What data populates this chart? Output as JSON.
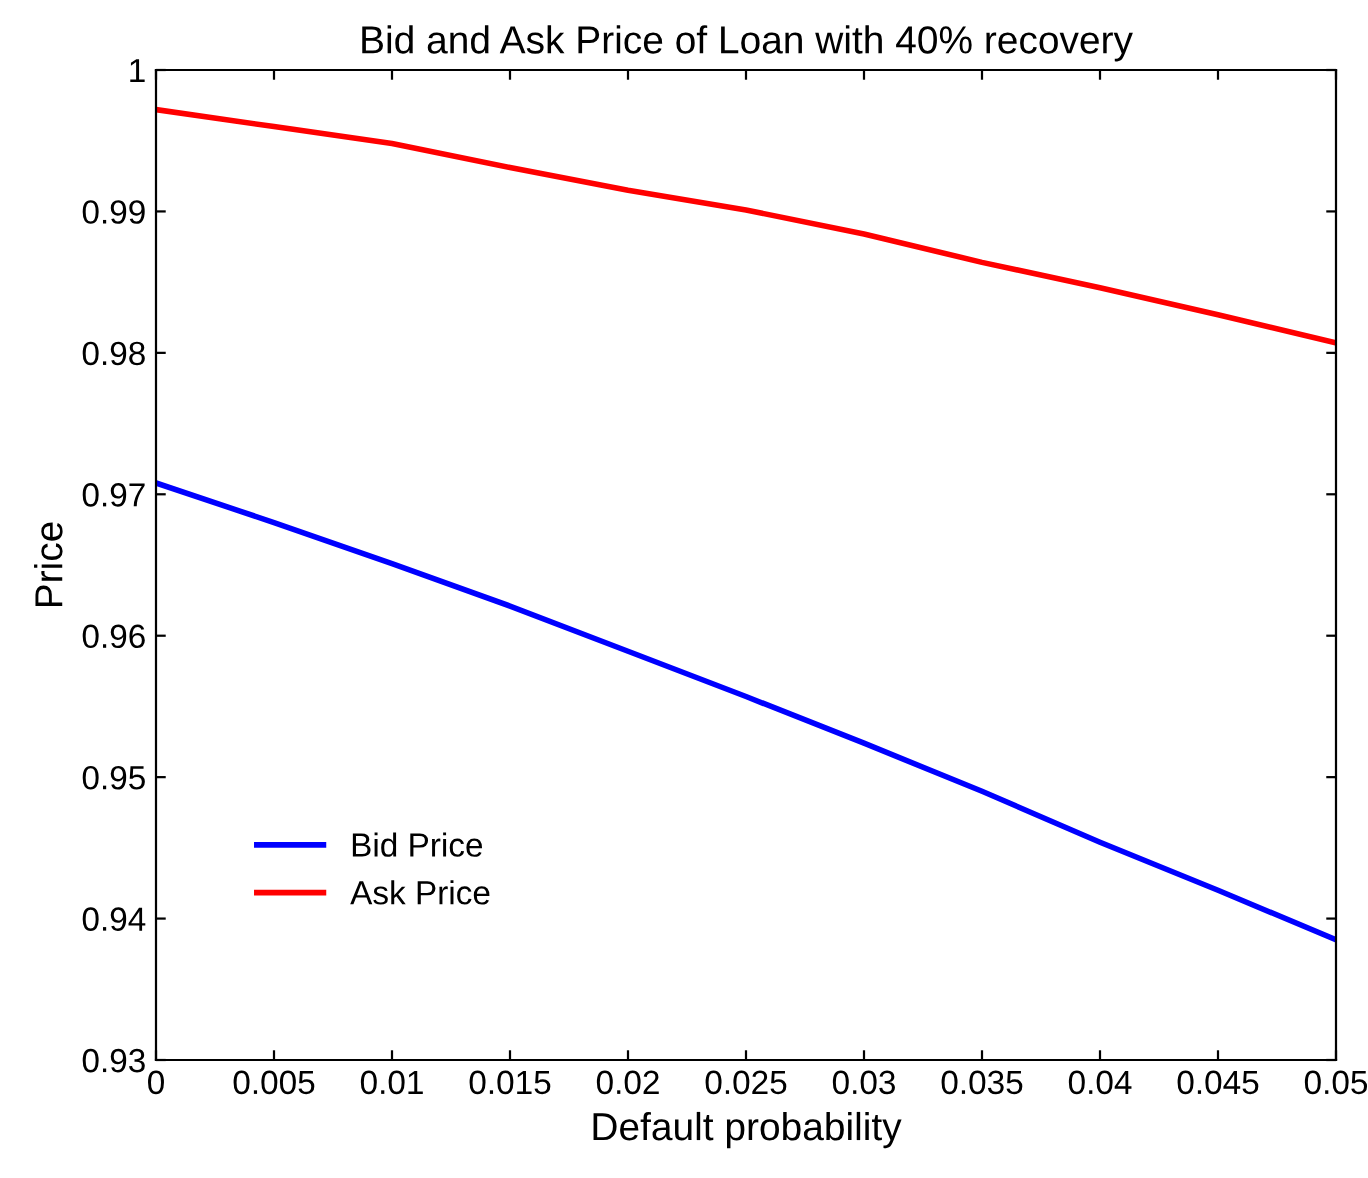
{
  "chart_data": {
    "type": "line",
    "title": "Bid and Ask Price of Loan with 40% recovery",
    "xlabel": "Default probability",
    "ylabel": "Price",
    "x": [
      0,
      0.005,
      0.01,
      0.015,
      0.02,
      0.025,
      0.03,
      0.035,
      0.04,
      0.045,
      0.05
    ],
    "series": [
      {
        "name": "Bid Price",
        "color": "#0000ff",
        "values": [
          0.9708,
          0.968,
          0.9651,
          0.9621,
          0.9589,
          0.9557,
          0.9524,
          0.949,
          0.9454,
          0.942,
          0.9385
        ]
      },
      {
        "name": "Ask Price",
        "color": "#ff0000",
        "values": [
          0.9972,
          0.996,
          0.9948,
          0.9931,
          0.9915,
          0.9901,
          0.9884,
          0.9864,
          0.9846,
          0.9827,
          0.9807
        ]
      }
    ],
    "xlim": [
      0,
      0.05
    ],
    "ylim": [
      0.93,
      1
    ],
    "xticks": [
      0,
      0.005,
      0.01,
      0.015,
      0.02,
      0.025,
      0.03,
      0.035,
      0.04,
      0.045,
      0.05
    ],
    "yticks": [
      0.93,
      0.94,
      0.95,
      0.96,
      0.97,
      0.98,
      0.99,
      1
    ],
    "grid": false,
    "legend": "bottom left",
    "marker": "none",
    "line_style": "solid"
  }
}
